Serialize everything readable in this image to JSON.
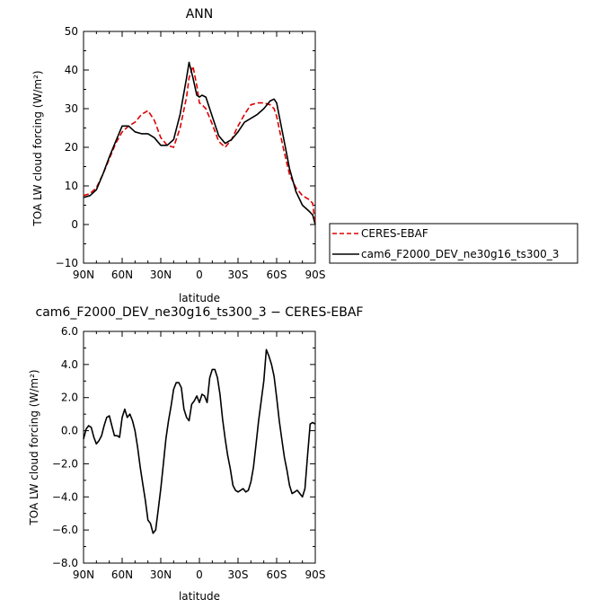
{
  "chart_data": [
    {
      "type": "line",
      "title": "ANN",
      "xlabel": "latitude",
      "ylabel": "TOA LW cloud forcing (W/m²)",
      "xlim": [
        90,
        -90
      ],
      "ylim": [
        -10,
        50
      ],
      "xticks": [
        90,
        60,
        30,
        0,
        -30,
        -60,
        -90
      ],
      "xtick_labels": [
        "90N",
        "60N",
        "30N",
        "0",
        "30S",
        "60S",
        "90S"
      ],
      "yticks": [
        -10,
        0,
        10,
        20,
        30,
        40,
        50
      ],
      "ytick_labels": [
        "−10",
        "0",
        "10",
        "20",
        "30",
        "40",
        "50"
      ],
      "legend": "right",
      "series": [
        {
          "name": "CERES-EBAF",
          "color": "#dd0000",
          "dash": "dashed",
          "x": [
            90,
            85,
            80,
            75,
            70,
            65,
            60,
            55,
            50,
            45,
            40,
            35,
            30,
            25,
            20,
            15,
            10,
            8,
            5,
            2,
            0,
            -2,
            -5,
            -10,
            -15,
            -20,
            -25,
            -30,
            -35,
            -40,
            -45,
            -50,
            -55,
            -58,
            -60,
            -65,
            -70,
            -75,
            -80,
            -85,
            -88,
            -90
          ],
          "y": [
            7.5,
            8,
            9.5,
            13,
            17,
            21,
            24,
            25.5,
            26.5,
            28.5,
            29.5,
            27,
            22.5,
            20.5,
            20,
            25,
            33,
            38,
            41,
            36,
            31.5,
            31,
            30,
            26,
            21.5,
            20,
            22,
            25.5,
            28.5,
            31,
            31.5,
            31.5,
            31,
            30,
            28,
            20,
            13,
            9.5,
            7.5,
            6.5,
            5.5,
            0
          ]
        },
        {
          "name": "cam6_F2000_DEV_ne30g16_ts300_3",
          "color": "#000000",
          "dash": "solid",
          "x": [
            90,
            85,
            80,
            75,
            70,
            65,
            60,
            55,
            50,
            45,
            40,
            35,
            30,
            25,
            20,
            15,
            10,
            8,
            5,
            2,
            0,
            -2,
            -5,
            -10,
            -15,
            -20,
            -25,
            -30,
            -35,
            -40,
            -45,
            -50,
            -55,
            -58,
            -60,
            -65,
            -70,
            -75,
            -80,
            -85,
            -88,
            -90
          ],
          "y": [
            7,
            7.5,
            9,
            13,
            17.5,
            21.5,
            25.5,
            25.5,
            24,
            23.5,
            23.5,
            22.5,
            20.5,
            20.5,
            22,
            28.5,
            38,
            42,
            38,
            33.5,
            33,
            33.5,
            33,
            28,
            23,
            21,
            22,
            24,
            26.5,
            27.5,
            28.5,
            30,
            32,
            32.5,
            31.5,
            23,
            14.5,
            8.5,
            5,
            3.5,
            2.5,
            0
          ]
        }
      ]
    },
    {
      "type": "line",
      "title": "cam6_F2000_DEV_ne30g16_ts300_3 − CERES-EBAF",
      "xlabel": "latitude",
      "ylabel": "TOA LW cloud forcing (W/m²)",
      "xlim": [
        90,
        -90
      ],
      "ylim": [
        -8,
        6
      ],
      "xticks": [
        90,
        60,
        30,
        0,
        -30,
        -60,
        -90
      ],
      "xtick_labels": [
        "90N",
        "60N",
        "30N",
        "0",
        "30S",
        "60S",
        "90S"
      ],
      "yticks": [
        -8,
        -6,
        -4,
        -2,
        0,
        2,
        4,
        6
      ],
      "ytick_labels": [
        "−8.0",
        "−6.0",
        "−4.0",
        "−2.0",
        "0.0",
        "2.0",
        "4.0",
        "6.0"
      ],
      "series": [
        {
          "color": "#000000",
          "dash": "solid",
          "x": [
            90,
            88,
            86,
            84,
            82,
            80,
            78,
            76,
            74,
            72,
            70,
            68,
            66,
            64,
            62,
            60,
            58,
            56,
            54,
            52,
            50,
            48,
            46,
            44,
            42,
            40,
            38,
            36,
            34,
            32,
            30,
            28,
            26,
            24,
            22,
            20,
            18,
            16,
            14,
            12,
            10,
            8,
            6,
            4,
            2,
            0,
            -2,
            -4,
            -6,
            -8,
            -10,
            -12,
            -14,
            -16,
            -18,
            -20,
            -22,
            -24,
            -26,
            -28,
            -30,
            -32,
            -34,
            -36,
            -38,
            -40,
            -42,
            -44,
            -46,
            -48,
            -50,
            -52,
            -54,
            -56,
            -58,
            -60,
            -62,
            -64,
            -66,
            -68,
            -70,
            -72,
            -74,
            -76,
            -78,
            -80,
            -82,
            -84,
            -86,
            -88,
            -90
          ],
          "y": [
            -0.5,
            0.1,
            0.3,
            0.2,
            -0.4,
            -0.8,
            -0.6,
            -0.3,
            0.3,
            0.8,
            0.9,
            0.3,
            -0.3,
            -0.3,
            -0.4,
            0.8,
            1.3,
            0.8,
            1.0,
            0.6,
            0.0,
            -1.0,
            -2.2,
            -3.2,
            -4.2,
            -5.4,
            -5.6,
            -6.2,
            -6.0,
            -4.8,
            -3.5,
            -2.0,
            -0.5,
            0.6,
            1.5,
            2.5,
            2.9,
            2.9,
            2.6,
            1.3,
            0.8,
            0.6,
            1.6,
            1.8,
            2.1,
            1.7,
            2.2,
            2.1,
            1.7,
            3.2,
            3.7,
            3.7,
            3.2,
            2.2,
            0.7,
            -0.5,
            -1.5,
            -2.3,
            -3.3,
            -3.6,
            -3.7,
            -3.6,
            -3.5,
            -3.7,
            -3.6,
            -3.1,
            -2.2,
            -0.8,
            0.6,
            1.8,
            3.0,
            4.9,
            4.5,
            4.0,
            3.3,
            2.0,
            0.6,
            -0.5,
            -1.6,
            -2.4,
            -3.3,
            -3.8,
            -3.7,
            -3.6,
            -3.8,
            -4.0,
            -3.5,
            -1.5,
            0.4,
            0.5,
            0.4
          ]
        }
      ]
    }
  ]
}
